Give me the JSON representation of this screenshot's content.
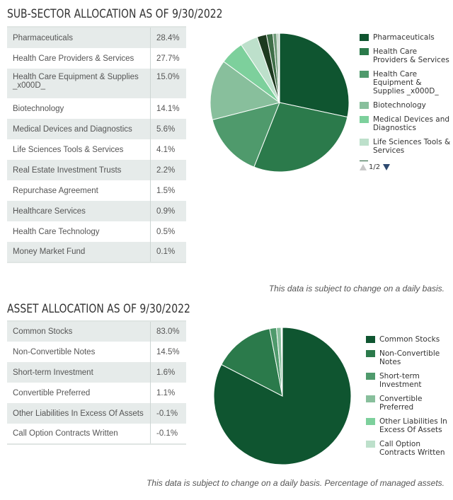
{
  "sub_sector": {
    "title": "SUB-SECTOR ALLOCATION AS OF 9/30/2022",
    "rows": [
      {
        "label": "Pharmaceuticals",
        "value": "28.4%"
      },
      {
        "label": "Health Care Providers & Services",
        "value": "27.7%"
      },
      {
        "label": "Health Care Equipment & Supplies _x000D_",
        "value": "15.0%"
      },
      {
        "label": "Biotechnology",
        "value": "14.1%"
      },
      {
        "label": "Medical Devices and Diagnostics",
        "value": "5.6%"
      },
      {
        "label": "Life Sciences Tools & Services",
        "value": "4.1%"
      },
      {
        "label": "Real Estate Investment Trusts",
        "value": "2.2%"
      },
      {
        "label": "Repurchase Agreement",
        "value": "1.5%"
      },
      {
        "label": "Healthcare Services",
        "value": "0.9%"
      },
      {
        "label": "Health Care Technology",
        "value": "0.5%"
      },
      {
        "label": "Money Market Fund",
        "value": "0.1%"
      }
    ],
    "legend": [
      {
        "label": "Pharmaceuticals",
        "color": "#0f5530"
      },
      {
        "label": "Health Care Providers & Services",
        "color": "#2b7a4b"
      },
      {
        "label": "Health Care Equipment & Supplies _x000D_",
        "color": "#4f9a6c"
      },
      {
        "label": "Biotechnology",
        "color": "#88bf9c"
      },
      {
        "label": "Medical Devices and Diagnostics",
        "color": "#7dd09c"
      },
      {
        "label": "Life Sciences Tools & Services",
        "color": "#bde0cb"
      }
    ],
    "pager": {
      "current": "1",
      "total": "2",
      "text": "1/2"
    },
    "note": "This data is subject to change on a daily basis."
  },
  "asset": {
    "title": "ASSET ALLOCATION AS OF 9/30/2022",
    "rows": [
      {
        "label": "Common Stocks",
        "value": "83.0%"
      },
      {
        "label": "Non-Convertible Notes",
        "value": "14.5%"
      },
      {
        "label": "Short-term Investment",
        "value": "1.6%"
      },
      {
        "label": "Convertible Preferred",
        "value": "1.1%"
      },
      {
        "label": "Other Liabilities In Excess Of Assets",
        "value": "-0.1%"
      },
      {
        "label": "Call Option Contracts Written",
        "value": "-0.1%"
      }
    ],
    "legend": [
      {
        "label": "Common Stocks",
        "color": "#0f5530"
      },
      {
        "label": "Non-Convertible Notes",
        "color": "#2b7a4b"
      },
      {
        "label": "Short-term Investment",
        "color": "#4f9a6c"
      },
      {
        "label": "Convertible Preferred",
        "color": "#88bf9c"
      },
      {
        "label": "Other Liabilities In Excess Of Assets",
        "color": "#7dd09c"
      },
      {
        "label": "Call Option Contracts Written",
        "color": "#bde0cb"
      }
    ],
    "note": "This data is subject to change on a daily basis. Percentage of managed assets."
  },
  "chart_data": [
    {
      "type": "pie",
      "title": "SUB-SECTOR ALLOCATION AS OF 9/30/2022",
      "categories": [
        "Pharmaceuticals",
        "Health Care Providers & Services",
        "Health Care Equipment & Supplies _x000D_",
        "Biotechnology",
        "Medical Devices and Diagnostics",
        "Life Sciences Tools & Services",
        "Real Estate Investment Trusts",
        "Repurchase Agreement",
        "Healthcare Services",
        "Health Care Technology",
        "Money Market Fund"
      ],
      "values": [
        28.4,
        27.7,
        15.0,
        14.1,
        5.6,
        4.1,
        2.2,
        1.5,
        0.9,
        0.5,
        0.1
      ],
      "colors": [
        "#0f5530",
        "#2b7a4b",
        "#4f9a6c",
        "#88bf9c",
        "#7dd09c",
        "#bde0cb",
        "#1d3a1f",
        "#3e6e47",
        "#6e9a78",
        "#a6c4ad",
        "#d8e8dc"
      ],
      "legend_position": "right",
      "legend_page": "1/2"
    },
    {
      "type": "pie",
      "title": "ASSET ALLOCATION AS OF 9/30/2022",
      "categories": [
        "Common Stocks",
        "Non-Convertible Notes",
        "Short-term Investment",
        "Convertible Preferred",
        "Other Liabilities In Excess Of Assets",
        "Call Option Contracts Written"
      ],
      "values": [
        83.0,
        14.5,
        1.6,
        1.1,
        -0.1,
        -0.1
      ],
      "colors": [
        "#0f5530",
        "#2b7a4b",
        "#4f9a6c",
        "#88bf9c",
        "#7dd09c",
        "#bde0cb"
      ],
      "legend_position": "right"
    }
  ]
}
